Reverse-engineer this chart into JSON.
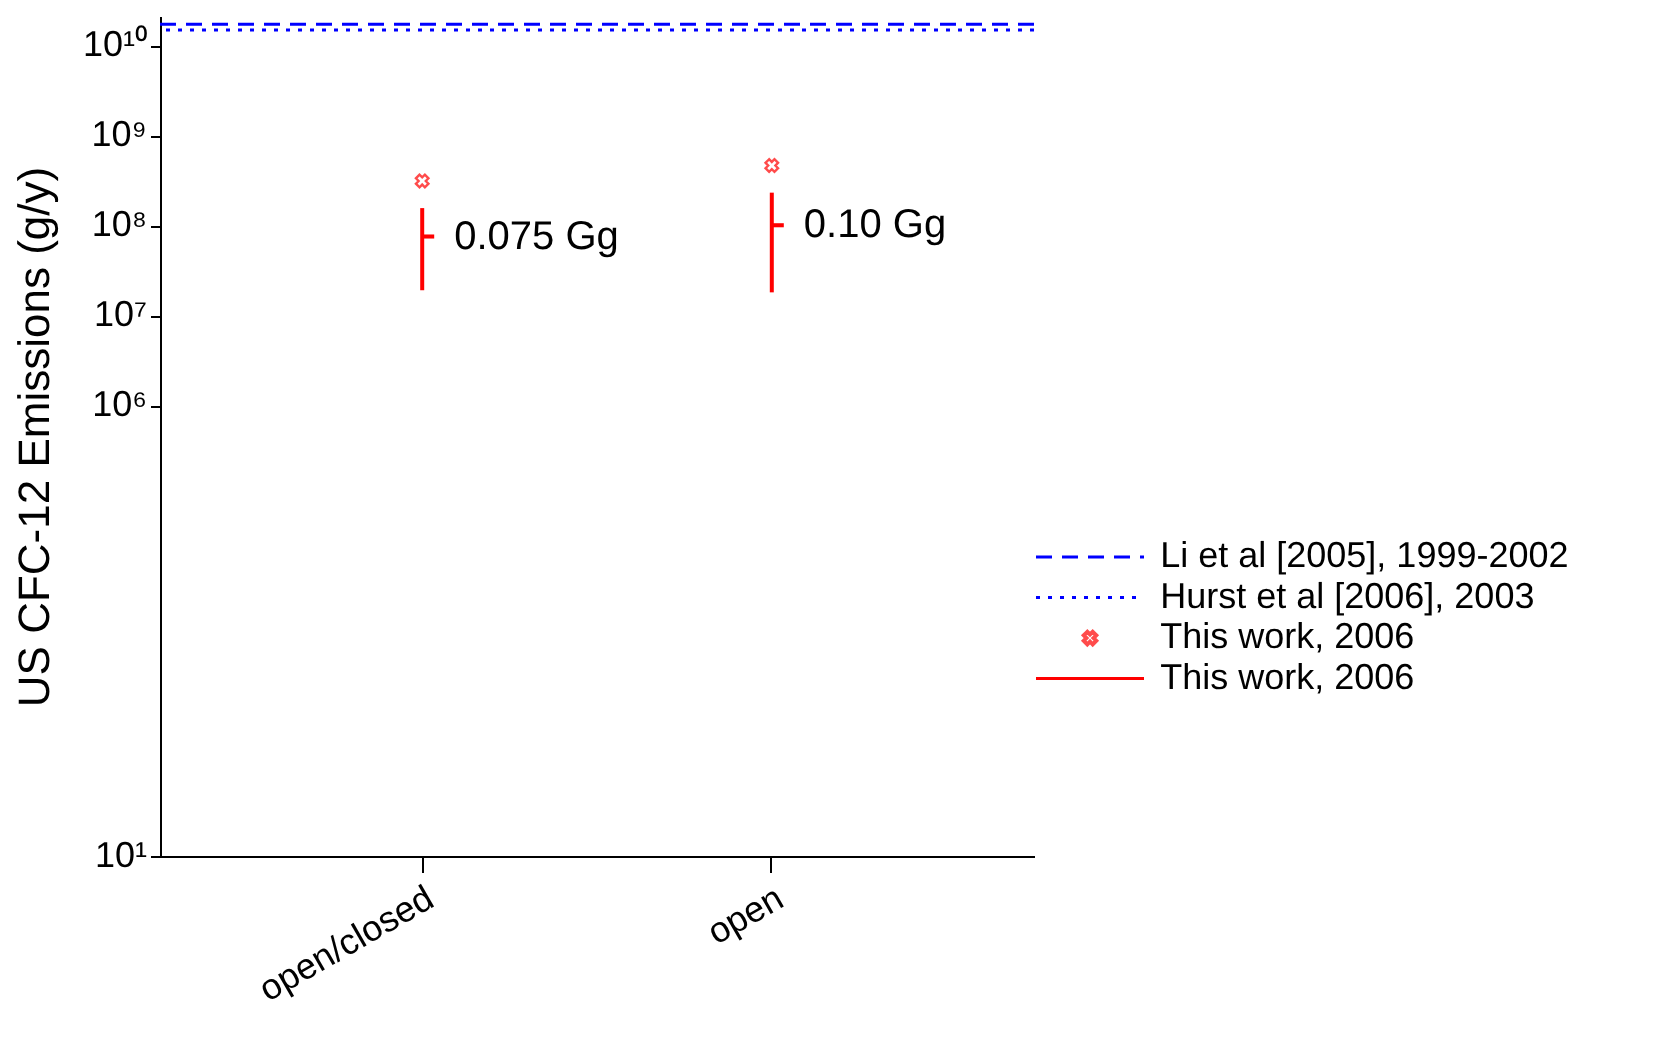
{
  "chart_data": {
    "type": "scatter",
    "ylabel": "US CFC-12 Emissions (g/y)",
    "categories": [
      "open/closed",
      "open"
    ],
    "series": [
      {
        "name": "This work, 2006",
        "color": "#ff0000",
        "marker": "cross",
        "values": [
          310000000.0,
          460000000.0
        ]
      },
      {
        "name": "This work, 2006",
        "color": "#ff0000",
        "values": [
          75000000.0,
          100000000.0
        ],
        "errors": [
          [
            19000000.0,
            155000000.0
          ],
          [
            18000000.0,
            230000000.0
          ]
        ]
      }
    ],
    "ref_lines": [
      {
        "axis": "y",
        "value": 17000000000.0,
        "label": "Li et al [2005], 1999-2002",
        "color": "#0000ff",
        "line_style": "dashed"
      },
      {
        "axis": "y",
        "value": 14700000000.0,
        "label": "Hurst et al [2006], 2003",
        "color": "#0000ff",
        "line_style": "dotted"
      }
    ],
    "annotations": [
      {
        "text": "0.075 Gg",
        "x": "open/closed",
        "y": 75000000.0
      },
      {
        "text": "0.10 Gg",
        "x": "open",
        "y": 100000000.0
      }
    ],
    "log": "y",
    "ylim": [
      10,
      21000000000.0
    ],
    "yticks": [
      {
        "value": 10,
        "label": "10¹"
      },
      {
        "value": 1000000.0,
        "label": "10⁶"
      },
      {
        "value": 10000000.0,
        "label": "10⁷"
      },
      {
        "value": 100000000.0,
        "label": "10⁸"
      },
      {
        "value": 1000000000.0,
        "label": "10⁹"
      },
      {
        "value": 10000000000.0,
        "label": "10¹⁰"
      }
    ],
    "grid": false,
    "legend": "bottom right"
  }
}
